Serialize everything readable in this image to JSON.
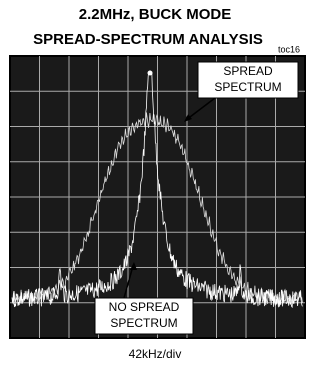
{
  "header": {
    "title": [
      "2.2MHz, BUCK MODE",
      "SPREAD-SPECTRUM ANALYSIS"
    ],
    "code": "toc16"
  },
  "labels": {
    "spread": [
      "SPREAD",
      "SPECTRUM"
    ],
    "no_spread": [
      "NO SPREAD",
      "SPECTRUM"
    ]
  },
  "x_axis_label": "42kHz/div"
}
